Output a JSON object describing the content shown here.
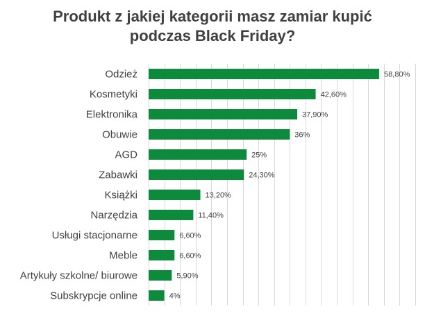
{
  "title": {
    "line1": "Produkt z jakiej kategorii masz zamiar kupić",
    "line2": "podczas Black Friday?"
  },
  "colors": {
    "bar": "#0E8A3C",
    "grid": "#D9D9D9",
    "text": "#404040"
  },
  "chart_data": {
    "type": "bar",
    "orientation": "horizontal",
    "title": "Produkt z jakiej kategorii masz zamiar kupić podczas Black Friday?",
    "categories": [
      "Odzież",
      "Kosmetyki",
      "Elektronika",
      "Obuwie",
      "AGD",
      "Zabawki",
      "Książki",
      "Narzędzia",
      "Usługi stacjonarne",
      "Meble",
      "Artykuły szkolne/ biurowe",
      "Subskrypcje online"
    ],
    "values": [
      58.8,
      42.6,
      37.9,
      36,
      25,
      24.3,
      13.2,
      11.4,
      6.6,
      6.6,
      5.9,
      4
    ],
    "value_labels": [
      "58,80%",
      "42,60%",
      "37,90%",
      "36%",
      "25%",
      "24,30%",
      "13,20%",
      "11,40%",
      "6,60%",
      "6,60%",
      "5,90%",
      "4%"
    ],
    "xlim": [
      0,
      68
    ],
    "grid": true,
    "legend": "none"
  }
}
